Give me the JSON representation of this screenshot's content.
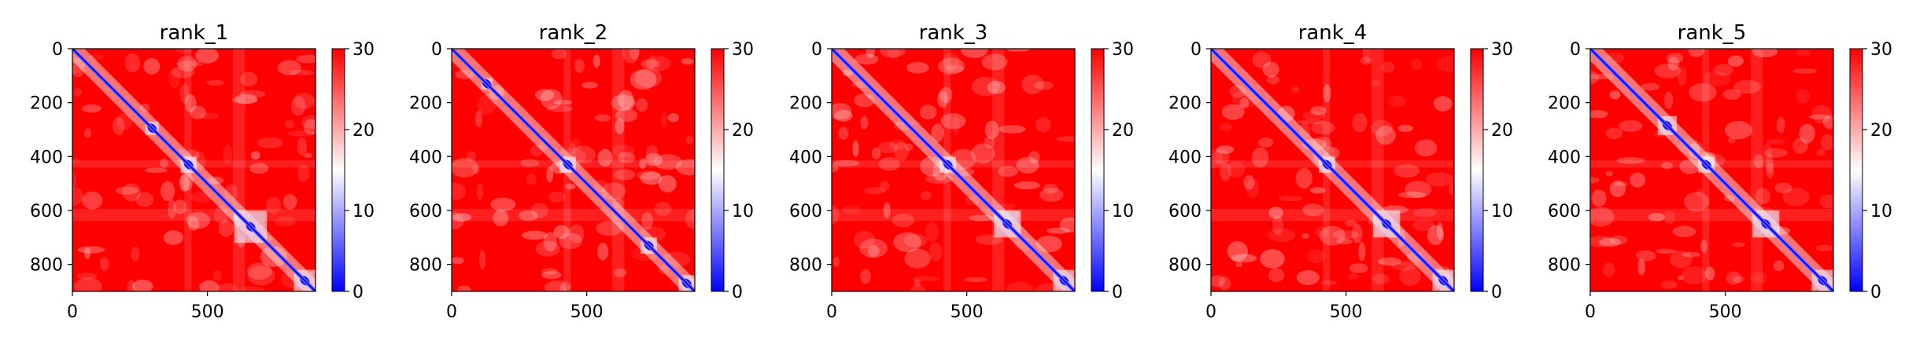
{
  "chart_data": [
    {
      "type": "heatmap",
      "title": "rank_1",
      "xlim": [
        0,
        900
      ],
      "ylim": [
        900,
        0
      ],
      "xticks": [
        0,
        500
      ],
      "yticks": [
        0,
        200,
        400,
        600,
        800
      ],
      "colorbar": {
        "min": 0,
        "max": 30,
        "ticks": [
          0,
          10,
          20,
          30
        ],
        "colormap": "bwr"
      },
      "diagonal_domains": [
        [
          270,
          320
        ],
        [
          400,
          460
        ],
        [
          600,
          720
        ],
        [
          820,
          900
        ]
      ]
    },
    {
      "type": "heatmap",
      "title": "rank_2",
      "xlim": [
        0,
        900
      ],
      "ylim": [
        900,
        0
      ],
      "xticks": [
        0,
        500
      ],
      "yticks": [
        0,
        200,
        400,
        600,
        800
      ],
      "colorbar": {
        "min": 0,
        "max": 30,
        "ticks": [
          0,
          10,
          20,
          30
        ],
        "colormap": "bwr"
      },
      "diagonal_domains": [
        [
          110,
          150
        ],
        [
          400,
          460
        ],
        [
          700,
          760
        ],
        [
          840,
          900
        ]
      ]
    },
    {
      "type": "heatmap",
      "title": "rank_3",
      "xlim": [
        0,
        900
      ],
      "ylim": [
        900,
        0
      ],
      "xticks": [
        0,
        500
      ],
      "yticks": [
        0,
        200,
        400,
        600,
        800
      ],
      "colorbar": {
        "min": 0,
        "max": 30,
        "ticks": [
          0,
          10,
          20,
          30
        ],
        "colormap": "bwr"
      },
      "diagonal_domains": [
        [
          400,
          460
        ],
        [
          600,
          700
        ],
        [
          820,
          900
        ]
      ]
    },
    {
      "type": "heatmap",
      "title": "rank_4",
      "xlim": [
        0,
        900
      ],
      "ylim": [
        900,
        0
      ],
      "xticks": [
        0,
        500
      ],
      "yticks": [
        0,
        200,
        400,
        600,
        800
      ],
      "colorbar": {
        "min": 0,
        "max": 30,
        "ticks": [
          0,
          10,
          20,
          30
        ],
        "colormap": "bwr"
      },
      "diagonal_domains": [
        [
          400,
          460
        ],
        [
          600,
          700
        ],
        [
          820,
          900
        ]
      ]
    },
    {
      "type": "heatmap",
      "title": "rank_5",
      "xlim": [
        0,
        900
      ],
      "ylim": [
        900,
        0
      ],
      "xticks": [
        0,
        500
      ],
      "yticks": [
        0,
        200,
        400,
        600,
        800
      ],
      "colorbar": {
        "min": 0,
        "max": 30,
        "ticks": [
          0,
          10,
          20,
          30
        ],
        "colormap": "bwr"
      },
      "diagonal_domains": [
        [
          250,
          320
        ],
        [
          400,
          460
        ],
        [
          600,
          700
        ],
        [
          820,
          900
        ]
      ]
    }
  ],
  "colors": {
    "high": "#ff0000",
    "mid": "#ffffff",
    "low": "#0000ff",
    "axis": "#000000"
  }
}
